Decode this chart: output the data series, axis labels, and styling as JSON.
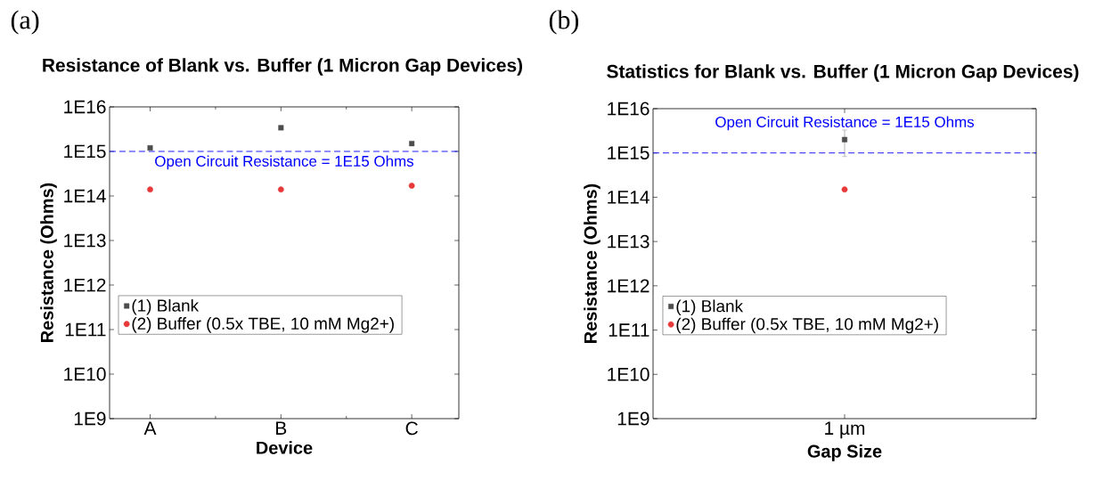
{
  "chart_data": [
    {
      "type": "scatter",
      "title": "Resistance of Blank vs. Buffer (1 Micron Gap Devices)",
      "xlabel": "Device",
      "ylabel": "Resistance (Ohms)",
      "log": "y",
      "categories": [
        "A",
        "B",
        "C"
      ],
      "series": [
        {
          "name": "(1) Blank",
          "color": "#4d4d4d",
          "marker": "square",
          "values": [
            1200000000000000.0,
            3400000000000000.0,
            1500000000000000.0
          ]
        },
        {
          "name": "(2) Buffer (0.5x TBE, 10 mM Mg2+)",
          "color": "#e8393a",
          "marker": "circle",
          "values": [
            140000000000000.0,
            140000000000000.0,
            170000000000000.0
          ]
        }
      ],
      "ylim": [
        1000000000.0,
        1e+16
      ],
      "yticks": [
        {
          "value": 1000000000.0,
          "label": "1E9"
        },
        {
          "value": 10000000000.0,
          "label": "1E10"
        },
        {
          "value": 100000000000.0,
          "label": "1E11"
        },
        {
          "value": 1000000000000.0,
          "label": "1E12"
        },
        {
          "value": 10000000000000.0,
          "label": "1E13"
        },
        {
          "value": 100000000000000.0,
          "label": "1E14"
        },
        {
          "value": 1000000000000000.0,
          "label": "1E15"
        },
        {
          "value": 1e+16,
          "label": "1E16"
        }
      ],
      "ref_lines": [
        {
          "axis": "y",
          "value": 1000000000000000.0,
          "color": "#0000ff",
          "line_style": "dashed"
        }
      ],
      "legend": "left",
      "grid": false,
      "annotations": [
        "(a)",
        {
          "text": "Open Circuit Resistance = 1E15 Ohms",
          "y": 1000000000000000.0
        }
      ]
    },
    {
      "type": "scatter",
      "title": "Statistics for Blank vs. Buffer (1 Micron Gap Devices)",
      "xlabel": "Gap Size",
      "ylabel": "Resistance (Ohms)",
      "log": "y",
      "categories": [
        "1 µm"
      ],
      "series": [
        {
          "name": "(1) Blank",
          "color": "#4d4d4d",
          "marker": "square",
          "values": [
            2000000000000000.0
          ],
          "errors": [
            [
              830000000000000.0,
              3300000000000000.0
            ]
          ]
        },
        {
          "name": "(2) Buffer (0.5x TBE, 10 mM Mg2+)",
          "color": "#e8393a",
          "marker": "circle",
          "values": [
            150000000000000.0
          ]
        }
      ],
      "ylim": [
        1000000000.0,
        1e+16
      ],
      "yticks": [
        {
          "value": 1000000000.0,
          "label": "1E9"
        },
        {
          "value": 10000000000.0,
          "label": "1E10"
        },
        {
          "value": 100000000000.0,
          "label": "1E11"
        },
        {
          "value": 1000000000000.0,
          "label": "1E12"
        },
        {
          "value": 10000000000000.0,
          "label": "1E13"
        },
        {
          "value": 100000000000000.0,
          "label": "1E14"
        },
        {
          "value": 1000000000000000.0,
          "label": "1E15"
        },
        {
          "value": 1e+16,
          "label": "1E16"
        }
      ],
      "ref_lines": [
        {
          "axis": "y",
          "value": 1000000000000000.0,
          "color": "#0000ff",
          "line_style": "dashed"
        }
      ],
      "legend": "left",
      "grid": false,
      "annotations": [
        "(b)",
        {
          "text": "Open Circuit Resistance = 1E15 Ohms",
          "y": 1000000000000000.0
        }
      ]
    }
  ]
}
